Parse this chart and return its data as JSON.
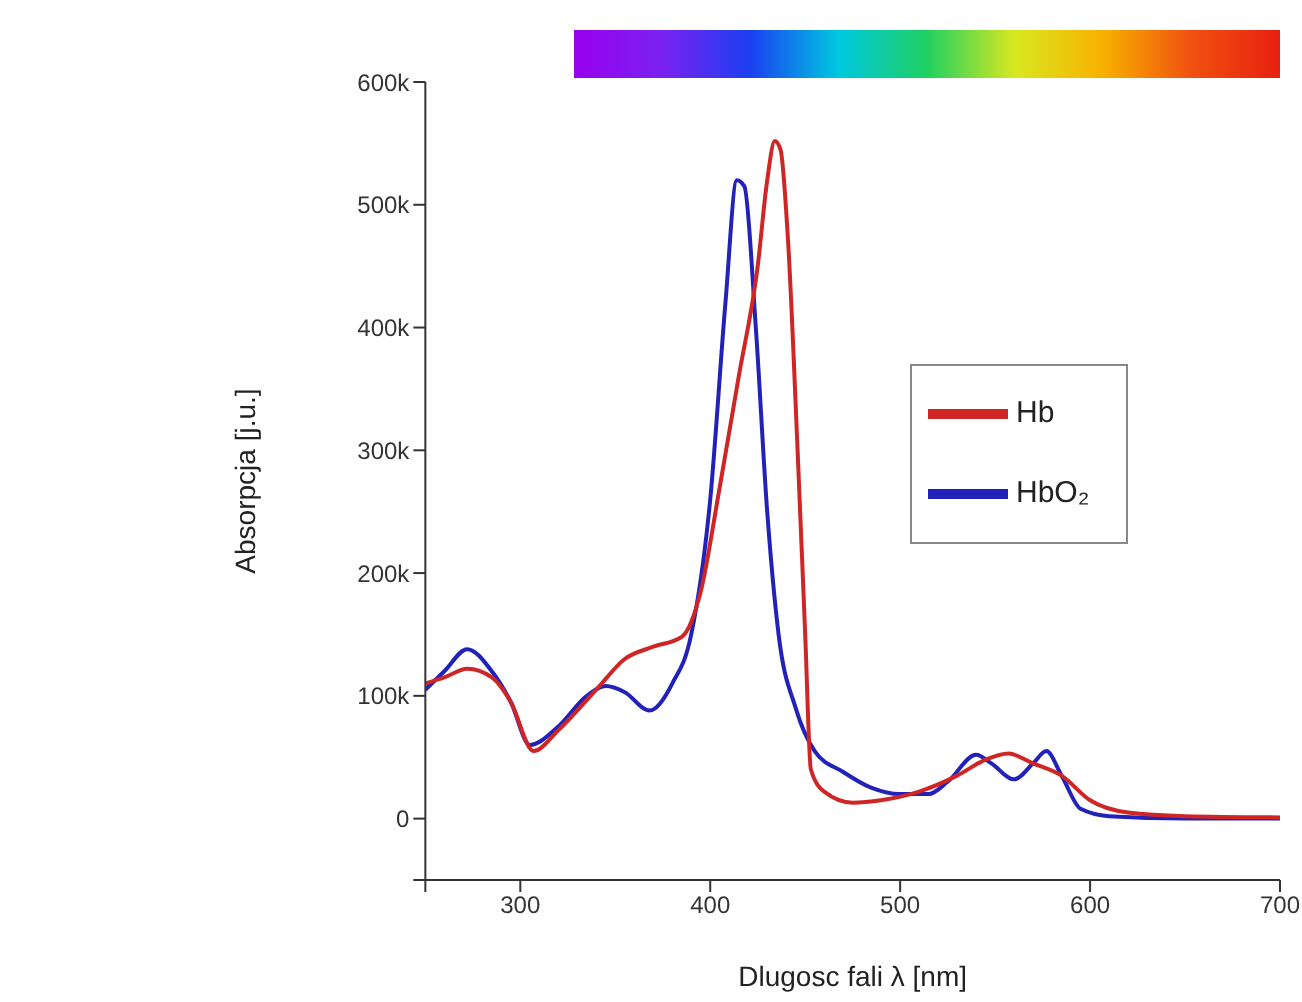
{
  "chart_data": {
    "type": "line",
    "xlabel": "Dlugosc fali λ [nm]",
    "ylabel": "Absorpcja [j.u.]",
    "xlim": [
      250,
      700
    ],
    "xticks": [
      {
        "value": 250,
        "label": null
      },
      300,
      400,
      500,
      600,
      700
    ],
    "ylim": [
      -50000,
      600000
    ],
    "yticks": [
      {
        "value": -50000,
        "label": null
      },
      0,
      {
        "value": 100000,
        "label": "100k"
      },
      {
        "value": 200000,
        "label": "200k"
      },
      {
        "value": 300000,
        "label": "300k"
      },
      {
        "value": 400000,
        "label": "400k"
      },
      {
        "value": 500000,
        "label": "500k"
      },
      {
        "value": 600000,
        "label": "600k"
      }
    ],
    "legend": "right",
    "grid": false,
    "marker": "none",
    "line_style": "solid",
    "series": [
      {
        "name": "HbO₂",
        "color": "#2222bb",
        "x": [
          250,
          260,
          272,
          285,
          295,
          305,
          320,
          335,
          345,
          355,
          368,
          380,
          390,
          400,
          408,
          414,
          418,
          424,
          430,
          436,
          445,
          455,
          470,
          485,
          500,
          515,
          525,
          540,
          548,
          560,
          570,
          577,
          585,
          595,
          610,
          650,
          700
        ],
        "values": [
          105000,
          120000,
          138000,
          120000,
          95000,
          60000,
          75000,
          100000,
          108000,
          103000,
          88000,
          110000,
          150000,
          260000,
          420000,
          520000,
          515000,
          400000,
          250000,
          150000,
          90000,
          55000,
          38000,
          25000,
          20000,
          20000,
          30000,
          52000,
          45000,
          32000,
          45000,
          55000,
          35000,
          8000,
          2000,
          0,
          0
        ]
      },
      {
        "name": "Hb",
        "color": "#d02525",
        "x": [
          250,
          260,
          272,
          285,
          295,
          307,
          320,
          340,
          355,
          370,
          385,
          395,
          405,
          415,
          425,
          430,
          434,
          437,
          441,
          446,
          450,
          453,
          460,
          475,
          490,
          510,
          530,
          545,
          557,
          570,
          585,
          600,
          620,
          650,
          700
        ],
        "values": [
          110000,
          115000,
          122000,
          115000,
          95000,
          55000,
          72000,
          105000,
          130000,
          140000,
          148000,
          185000,
          270000,
          360000,
          450000,
          520000,
          552000,
          545000,
          470000,
          300000,
          150000,
          40000,
          22000,
          13000,
          15000,
          22000,
          35000,
          48000,
          53000,
          45000,
          35000,
          15000,
          5000,
          2000,
          1000
        ]
      }
    ]
  }
}
